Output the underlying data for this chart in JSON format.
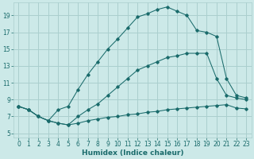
{
  "xlabel": "Humidex (Indice chaleur)",
  "bg_color": "#cce9e8",
  "grid_color": "#aacfce",
  "line_color": "#1a6b6b",
  "xlim": [
    -0.5,
    23.5
  ],
  "ylim": [
    4.5,
    20.5
  ],
  "yticks": [
    5,
    7,
    9,
    11,
    13,
    15,
    17,
    19
  ],
  "xticks": [
    0,
    1,
    2,
    3,
    4,
    5,
    6,
    7,
    8,
    9,
    10,
    11,
    12,
    13,
    14,
    15,
    16,
    17,
    18,
    19,
    20,
    21,
    22,
    23
  ],
  "curve1_x": [
    0,
    1,
    2,
    3,
    4,
    5,
    6,
    7,
    8,
    9,
    10,
    11,
    12,
    13,
    14,
    15,
    16,
    17,
    18,
    19,
    20,
    21,
    22,
    23
  ],
  "curve1_y": [
    8.2,
    7.8,
    7.0,
    6.5,
    7.8,
    8.2,
    10.2,
    12.0,
    13.5,
    15.0,
    16.2,
    17.5,
    18.8,
    19.2,
    19.7,
    20.0,
    19.5,
    19.0,
    17.2,
    17.0,
    16.5,
    11.5,
    9.5,
    9.2
  ],
  "curve2_x": [
    0,
    1,
    2,
    3,
    4,
    5,
    6,
    7,
    8,
    9,
    10,
    11,
    12,
    13,
    14,
    15,
    16,
    17,
    18,
    19,
    20,
    21,
    22,
    23
  ],
  "curve2_y": [
    8.2,
    7.8,
    7.0,
    6.5,
    6.2,
    6.0,
    7.0,
    7.8,
    8.5,
    9.5,
    10.5,
    11.5,
    12.5,
    13.0,
    13.5,
    14.0,
    14.2,
    14.5,
    14.5,
    14.5,
    11.5,
    9.5,
    9.2,
    9.0
  ],
  "curve3_x": [
    0,
    1,
    2,
    3,
    4,
    5,
    6,
    7,
    8,
    9,
    10,
    11,
    12,
    13,
    14,
    15,
    16,
    17,
    18,
    19,
    20,
    21,
    22,
    23
  ],
  "curve3_y": [
    8.2,
    7.8,
    7.0,
    6.5,
    6.2,
    6.0,
    6.2,
    6.5,
    6.7,
    6.9,
    7.0,
    7.2,
    7.3,
    7.5,
    7.6,
    7.8,
    7.9,
    8.0,
    8.1,
    8.2,
    8.3,
    8.4,
    8.0,
    7.9
  ],
  "xlabel_fontsize": 6.5,
  "tick_fontsize": 5.5
}
